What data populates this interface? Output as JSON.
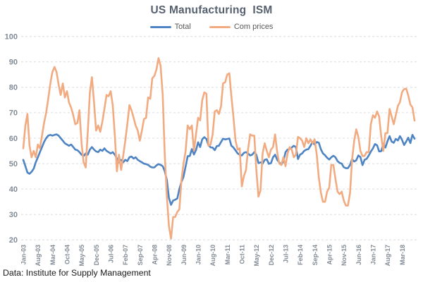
{
  "header": {
    "title": "US Manufacturing  ISM"
  },
  "legend": [
    {
      "label": "Total",
      "color": "#4E84C4"
    },
    {
      "label": "Com prices",
      "color": "#F2AB81"
    }
  ],
  "footer": {
    "source": "Data: Institute for Supply Management"
  },
  "colors": {
    "background": "#FFFFFF",
    "gridline": "#D9DCE1",
    "axis_label": "#828B96",
    "title_text": "#56606F",
    "legend_text": "#595959",
    "footer_text": "#1A1A1A"
  },
  "chart_data": {
    "type": "line",
    "title": "US Manufacturing  ISM",
    "xlabel": "",
    "ylabel": "",
    "ylim": [
      20,
      100
    ],
    "y_ticks": [
      20,
      30,
      40,
      50,
      60,
      70,
      80,
      90,
      100
    ],
    "grid": "horizontal-dashed",
    "legend_position": "top",
    "x_start": "Jan-03",
    "x_end": "Sep-18",
    "n_points": 189,
    "x_tick_interval_months": 7,
    "x_tick_labels": [
      "Jan-03",
      "Aug-03",
      "Mar-04",
      "Oct-04",
      "May-05",
      "Dec-05",
      "Jul-06",
      "Feb-07",
      "Sep-07",
      "Apr-08",
      "Nov-08",
      "Jun-09",
      "Jan-10",
      "Aug-10",
      "Mar-11",
      "Oct-11",
      "May-12",
      "Dec-12",
      "Jul-13",
      "Feb-14",
      "Sep-14",
      "Apr-15",
      "Nov-15",
      "Jun-16",
      "Jan-17",
      "Aug-17",
      "Mar-18"
    ],
    "series": [
      {
        "name": "Total",
        "color": "#4E84C4",
        "values": [
          51.5,
          49,
          46.5,
          46,
          46.8,
          48,
          50.5,
          52.5,
          54.5,
          56.5,
          58.5,
          60,
          61,
          61.3,
          61,
          61.3,
          61.5,
          61,
          60,
          59,
          58,
          57.5,
          57,
          57.5,
          56.5,
          55.5,
          55.3,
          54.5,
          53.5,
          53,
          54,
          53.5,
          55.5,
          56.5,
          55.5,
          54.8,
          54.5,
          55.5,
          55,
          56,
          55,
          54.5,
          54,
          54.5,
          53.5,
          52,
          50.5,
          51.5,
          50.5,
          51.5,
          51,
          52.5,
          52.8,
          52,
          52.5,
          51.5,
          51,
          50.5,
          50,
          49.8,
          49.5,
          48.8,
          48.5,
          48.5,
          49.3,
          49.8,
          49.5,
          49,
          47,
          43.5,
          36.5,
          33.8,
          35.5,
          35.8,
          36.3,
          40,
          42.8,
          44.8,
          48.9,
          52.9,
          53,
          55.7,
          53.6,
          55.3,
          58.4,
          56.5,
          59.6,
          60.4,
          59.7,
          57.3,
          56.4,
          56.3,
          55.3,
          56.9,
          57,
          58.5,
          59.8,
          59.5,
          59.7,
          59.9,
          57,
          56.3,
          55.2,
          54,
          53.5,
          53.2,
          54.2,
          54.5,
          54,
          53.2,
          53.5,
          54.5,
          53.5,
          50.2,
          50.5,
          50,
          51.5,
          51.7,
          49.9,
          50.2,
          52.5,
          53.5,
          51.5,
          50.5,
          49.5,
          51,
          54.5,
          55.5,
          55.8,
          56.3,
          57,
          56.5,
          51.8,
          53.5,
          54,
          55,
          55.5,
          55.7,
          57,
          58.5,
          57.5,
          58.5,
          58.2,
          55.6,
          54,
          53.3,
          52.3,
          51.6,
          52.5,
          53.1,
          52.5,
          51,
          50.3,
          50,
          48.6,
          48.2,
          48.2,
          49.5,
          51.8,
          50.8,
          51.3,
          53.2,
          52.6,
          49.4,
          51.5,
          51.9,
          53.2,
          54.7,
          56,
          57.7,
          57.2,
          54.8,
          54.9,
          57.8,
          56.3,
          58.8,
          60.8,
          58.7,
          58.2,
          59.7,
          59.1,
          60.8,
          59.3,
          57.3,
          58.7,
          60.2,
          58.1,
          61.3,
          59.8
        ]
      },
      {
        "name": "Com prices",
        "color": "#F2AB81",
        "values": [
          56,
          65,
          69.5,
          57,
          52.5,
          55,
          52.5,
          57.5,
          56,
          61,
          66,
          70,
          75.5,
          81.5,
          86,
          88,
          86,
          81,
          77,
          81.5,
          76,
          78.5,
          74,
          72,
          69,
          65.5,
          66,
          71,
          58,
          50.5,
          48.5,
          62.5,
          78,
          84,
          74,
          63,
          65,
          62.5,
          66.5,
          71.5,
          77,
          76.5,
          78.5,
          73,
          61,
          47,
          53.5,
          47.5,
          53,
          59,
          65.5,
          73,
          71,
          68,
          65,
          63,
          59,
          63,
          67.5,
          68,
          76,
          75.5,
          83.5,
          84.5,
          87,
          91.5,
          88.5,
          77,
          53.5,
          37,
          25.5,
          20.5,
          29,
          29,
          31,
          32,
          43.5,
          50,
          55,
          65,
          63.5,
          65,
          55,
          61.5,
          68,
          67,
          75,
          78,
          77.5,
          57,
          57.5,
          61.5,
          70.5,
          71,
          69.5,
          72.5,
          81.5,
          82,
          85,
          85.5,
          76.5,
          68,
          59,
          55.5,
          56,
          41,
          45,
          47.5,
          55.5,
          61.5,
          61,
          61,
          47.5,
          37,
          39.5,
          54,
          58,
          55,
          52.5,
          55.5,
          56.5,
          61.5,
          54.5,
          50,
          49.5,
          52.5,
          49,
          54,
          56.5,
          55.5,
          52.5,
          53.5,
          60.5,
          60,
          59,
          56.5,
          60,
          58,
          59.5,
          58,
          59.5,
          53.5,
          44.5,
          38.5,
          35,
          35,
          39,
          40.5,
          49.5,
          49.5,
          44,
          39,
          38,
          39,
          35.5,
          33.5,
          33.5,
          38.5,
          51.5,
          59,
          63.5,
          60.5,
          55,
          53,
          53,
          54.5,
          54.5,
          65.5,
          69,
          68,
          70.5,
          68.5,
          60.5,
          55,
          62,
          62,
          71.5,
          68.5,
          65.5,
          69,
          72.7,
          74.2,
          78.1,
          79.3,
          79.5,
          76.8,
          73.2,
          72.1,
          66.9
        ]
      }
    ]
  }
}
